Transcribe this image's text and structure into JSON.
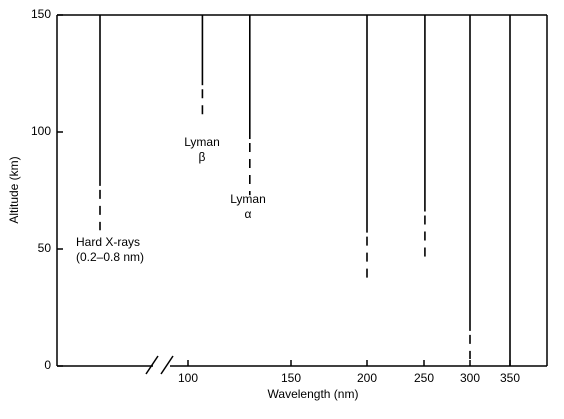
{
  "chart_data": {
    "type": "penetration",
    "xlabel": "Wavelength (nm)",
    "ylabel": "Altitude (km)",
    "ylim": [
      0,
      150
    ],
    "yticks": [
      0,
      50,
      100,
      150
    ],
    "xticks": [
      100,
      150,
      200,
      250,
      300,
      350
    ],
    "color": "#000000",
    "series": [
      {
        "name": [
          "Hard X-rays",
          "(0.2–0.8 nm)"
        ],
        "x": 0.5,
        "solid_to": 77,
        "dashed_to": 58
      },
      {
        "name": [
          "Lyman",
          "β"
        ],
        "x": 107,
        "solid_to": 120,
        "dashed_to": 105
      },
      {
        "name": [
          "Lyman",
          "α"
        ],
        "x": 130,
        "solid_to": 97,
        "dashed_to": 73
      },
      {
        "x": 200,
        "solid_to": 57,
        "dashed_to": 37
      },
      {
        "x": 251,
        "solid_to": 66,
        "dashed_to": 46
      },
      {
        "x": 300,
        "solid_to": 15,
        "dashed_to": 3
      },
      {
        "x": 350,
        "solid_to": 0,
        "dashed_to": null
      }
    ]
  }
}
